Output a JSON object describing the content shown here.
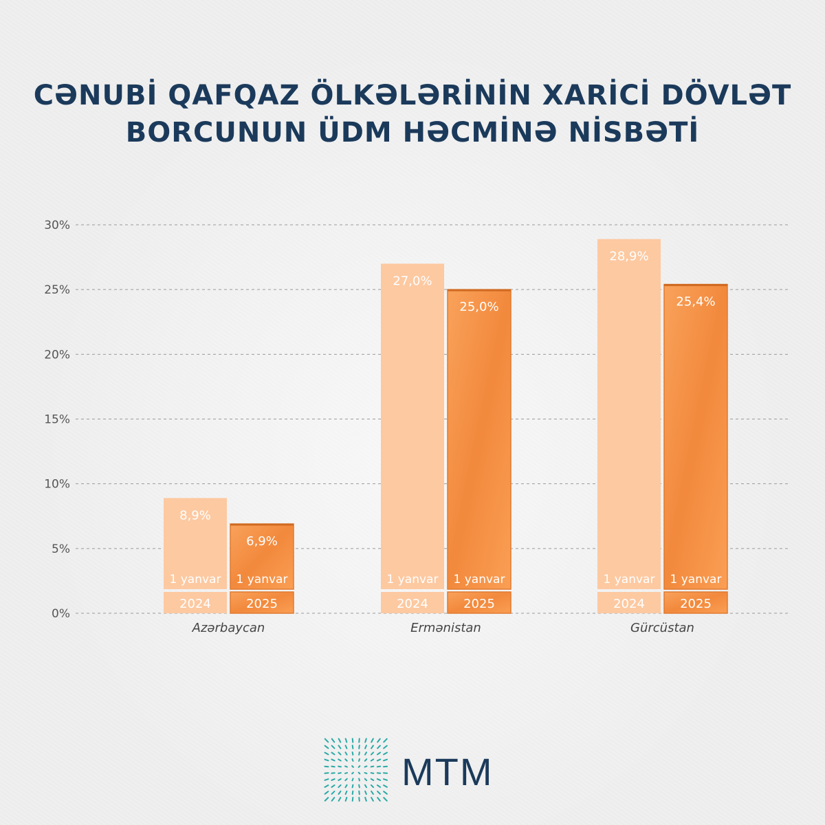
{
  "title": {
    "line1": "CƏNUBİ QAFQAZ ÖLKƏLƏRİNİN XARİCİ DÖVLƏT",
    "line2": "BORCUNUN ÜDM HƏCMİNƏ NİSBƏTİ"
  },
  "chart_data": {
    "type": "bar",
    "categories": [
      "Azərbaycan",
      "Ermənistan",
      "Gürcüstan"
    ],
    "series": [
      {
        "name": "1 yanvar 2024",
        "date_label": "1 yanvar",
        "year_label": "2024",
        "color": "#fdc9a1",
        "values": [
          8.9,
          27.0,
          28.9
        ],
        "value_labels": [
          "8,9%",
          "27,0%",
          "28,9%"
        ]
      },
      {
        "name": "1 yanvar 2025",
        "date_label": "1 yanvar",
        "year_label": "2025",
        "color": "#f7964a",
        "values": [
          6.9,
          25.0,
          25.4
        ],
        "value_labels": [
          "6,9%",
          "25,0%",
          "25,4%"
        ]
      }
    ],
    "y_ticks": [
      "0%",
      "5%",
      "10%",
      "15%",
      "20%",
      "25%",
      "30%"
    ],
    "ylim": [
      0,
      30
    ],
    "grid": true,
    "xlabel": "",
    "ylabel": ""
  },
  "logo": {
    "text": "MTM",
    "color": "#1b3a5b",
    "mark_color": "#2aa9a5"
  }
}
